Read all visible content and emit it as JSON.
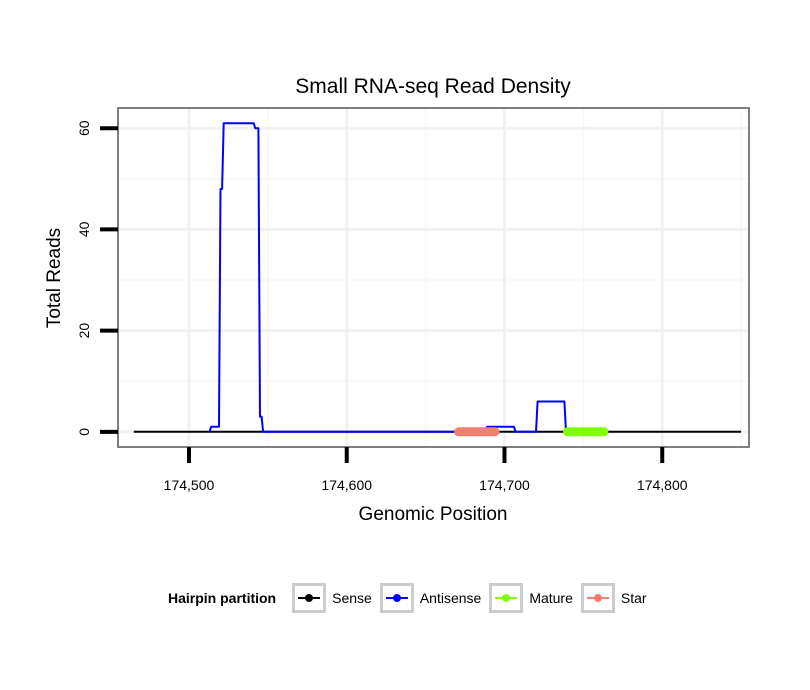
{
  "chart_data": {
    "type": "line",
    "title": "Small RNA-seq Read Density",
    "xlabel": "Genomic Position",
    "ylabel": "Total Reads",
    "xlim": [
      174455,
      174855
    ],
    "ylim": [
      -3,
      64
    ],
    "x_ticks": [
      174500,
      174600,
      174700,
      174800
    ],
    "x_tick_labels": [
      "174,500",
      "174,600",
      "174,700",
      "174,800"
    ],
    "y_ticks": [
      0,
      20,
      40,
      60
    ],
    "y_tick_labels": [
      "0",
      "20",
      "40",
      "60"
    ],
    "grid": true,
    "legend": {
      "title": "Hairpin partition",
      "position": "bottom",
      "entries": [
        "Sense",
        "Antisense",
        "Mature",
        "Star"
      ]
    },
    "series": [
      {
        "name": "Sense",
        "color": "#000000",
        "x": [
          174465,
          174850
        ],
        "y": [
          0,
          0
        ]
      },
      {
        "name": "Antisense",
        "color": "#0000ff",
        "x": [
          174513,
          174514,
          174519,
          174520,
          174521,
          174522,
          174524,
          174525,
          174541,
          174542,
          174544,
          174545,
          174546,
          174547,
          174548,
          174549,
          174688,
          174689,
          174706,
          174707,
          174720,
          174721,
          174738,
          174739
        ],
        "y": [
          0,
          1,
          1,
          48,
          48,
          61,
          61,
          61,
          61,
          60,
          60,
          3,
          3,
          0,
          0,
          0,
          0,
          1,
          1,
          0,
          0,
          6,
          6,
          0
        ]
      },
      {
        "name": "Mature",
        "color": "#7fff00",
        "x": [
          174740,
          174763
        ],
        "y": [
          0,
          0
        ]
      },
      {
        "name": "Star",
        "color": "#f08070",
        "x": [
          174671,
          174694
        ],
        "y": [
          0,
          0
        ]
      }
    ]
  }
}
